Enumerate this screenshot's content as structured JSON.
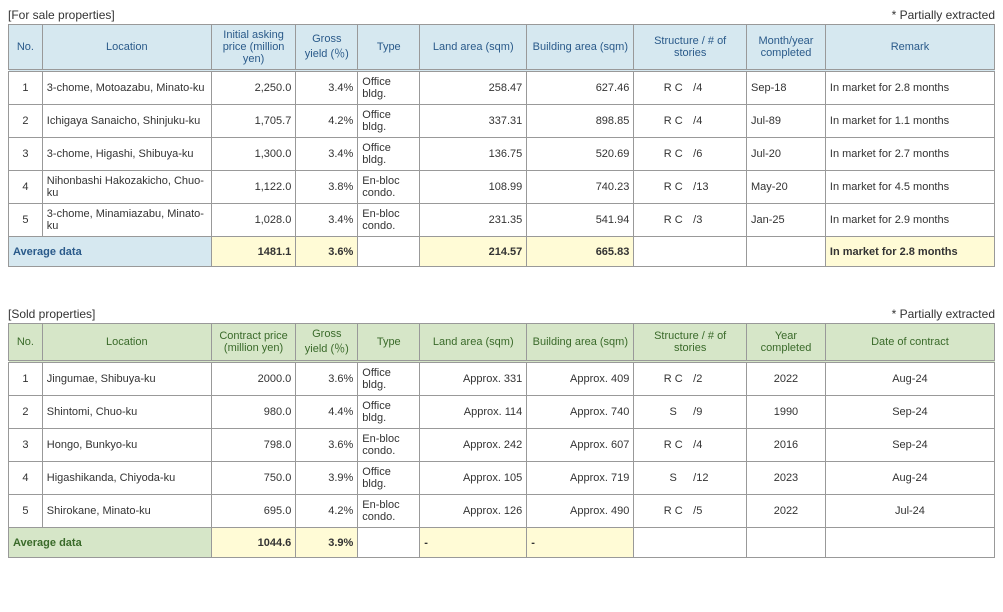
{
  "section1": {
    "title": "[For sale properties]",
    "note": "* Partially extracted",
    "headers": {
      "no": "No.",
      "location": "Location",
      "price": "Initial asking price (million yen)",
      "yield": "Gross yield (％)",
      "type": "Type",
      "land": "Land area (sqm)",
      "bldg": "Building area (sqm)",
      "struct": "Structure / # of stories",
      "date": "Month/year completed",
      "remark": "Remark"
    },
    "rows": [
      {
        "no": "1",
        "loc": "3-chome, Motoazabu, Minato-ku",
        "price": "2,250.0",
        "yield": "3.4%",
        "type": "Office bldg.",
        "land": "258.47",
        "bldg": "627.46",
        "sa": "R C",
        "sb": "/4",
        "date": "Sep-18",
        "rem": "In market for 2.8 months"
      },
      {
        "no": "2",
        "loc": "Ichigaya Sanaicho, Shinjuku-ku",
        "price": "1,705.7",
        "yield": "4.2%",
        "type": "Office bldg.",
        "land": "337.31",
        "bldg": "898.85",
        "sa": "R C",
        "sb": "/4",
        "date": "Jul-89",
        "rem": "In market for 1.1 months"
      },
      {
        "no": "3",
        "loc": "3-chome, Higashi, Shibuya-ku",
        "price": "1,300.0",
        "yield": "3.4%",
        "type": "Office bldg.",
        "land": "136.75",
        "bldg": "520.69",
        "sa": "R C",
        "sb": "/6",
        "date": "Jul-20",
        "rem": "In market for 2.7 months"
      },
      {
        "no": "4",
        "loc": "Nihonbashi Hakozakicho, Chuo-ku",
        "price": "1,122.0",
        "yield": "3.8%",
        "type": "En-bloc condo.",
        "land": "108.99",
        "bldg": "740.23",
        "sa": "R C",
        "sb": "/13",
        "date": "May-20",
        "rem": "In market for 4.5 months"
      },
      {
        "no": "5",
        "loc": "3-chome, Minamiazabu, Minato-ku",
        "price": "1,028.0",
        "yield": "3.4%",
        "type": "En-bloc condo.",
        "land": "231.35",
        "bldg": "541.94",
        "sa": "R C",
        "sb": "/3",
        "date": "Jan-25",
        "rem": "In market for 2.9 months"
      }
    ],
    "avg": {
      "label": "Average data",
      "price": "1481.1",
      "yield": "3.6%",
      "land": "214.57",
      "bldg": "665.83",
      "rem": "In market for 2.8 months"
    }
  },
  "section2": {
    "title": "[Sold properties]",
    "note": "* Partially extracted",
    "headers": {
      "no": "No.",
      "location": "Location",
      "price": "Contract price (million yen)",
      "yield": "Gross yield (％)",
      "type": "Type",
      "land": "Land area (sqm)",
      "bldg": "Building area (sqm)",
      "struct": "Structure / # of stories",
      "date": "Year completed",
      "remark": "Date of contract"
    },
    "rows": [
      {
        "no": "1",
        "loc": "Jingumae, Shibuya-ku",
        "price": "2000.0",
        "yield": "3.6%",
        "type": "Office bldg.",
        "land": "Approx. 331",
        "bldg": "Approx. 409",
        "sa": "R C",
        "sb": "/2",
        "date": "2022",
        "rem": "Aug-24"
      },
      {
        "no": "2",
        "loc": "Shintomi, Chuo-ku",
        "price": "980.0",
        "yield": "4.4%",
        "type": "Office bldg.",
        "land": "Approx. 114",
        "bldg": "Approx. 740",
        "sa": "S",
        "sb": "/9",
        "date": "1990",
        "rem": "Sep-24"
      },
      {
        "no": "3",
        "loc": "Hongo, Bunkyo-ku",
        "price": "798.0",
        "yield": "3.6%",
        "type": "En-bloc condo.",
        "land": "Approx. 242",
        "bldg": "Approx. 607",
        "sa": "R C",
        "sb": "/4",
        "date": "2016",
        "rem": "Sep-24"
      },
      {
        "no": "4",
        "loc": "Higashikanda, Chiyoda-ku",
        "price": "750.0",
        "yield": "3.9%",
        "type": "Office bldg.",
        "land": "Approx. 105",
        "bldg": "Approx. 719",
        "sa": "S",
        "sb": "/12",
        "date": "2023",
        "rem": "Aug-24"
      },
      {
        "no": "5",
        "loc": "Shirokane, Minato-ku",
        "price": "695.0",
        "yield": "4.2%",
        "type": "En-bloc condo.",
        "land": "Approx. 126",
        "bldg": "Approx. 490",
        "sa": "R C",
        "sb": "/5",
        "date": "2022",
        "rem": "Jul-24"
      }
    ],
    "avg": {
      "label": "Average data",
      "price": "1044.6",
      "yield": "3.9%",
      "land": "-",
      "bldg": "-",
      "rem": ""
    }
  }
}
